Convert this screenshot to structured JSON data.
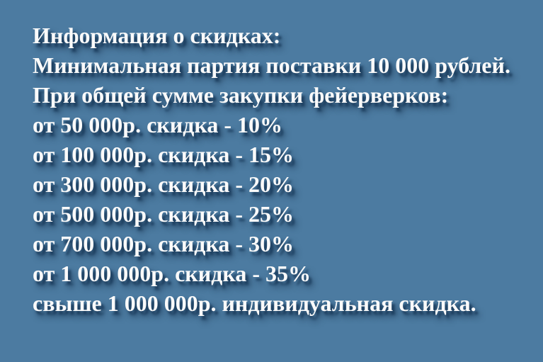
{
  "banner": {
    "colors": {
      "background": "#4c7ba1",
      "text": "#fafafa",
      "shadow": "#1c3e5f"
    },
    "lines": [
      "Информация о скидках:",
      "Минимальная партия поставки 10 000 рублей.",
      "При общей сумме закупки фейерверков:",
      "от 50 000р. скидка - 10%",
      "от 100 000р. скидка - 15%",
      "от 300 000р. скидка - 20%",
      "от 500 000р. скидка - 25%",
      "от 700 000р. скидка - 30%",
      "от 1 000 000р. скидка - 35%",
      "свыше 1 000 000р. индивидуальная скидка."
    ]
  }
}
